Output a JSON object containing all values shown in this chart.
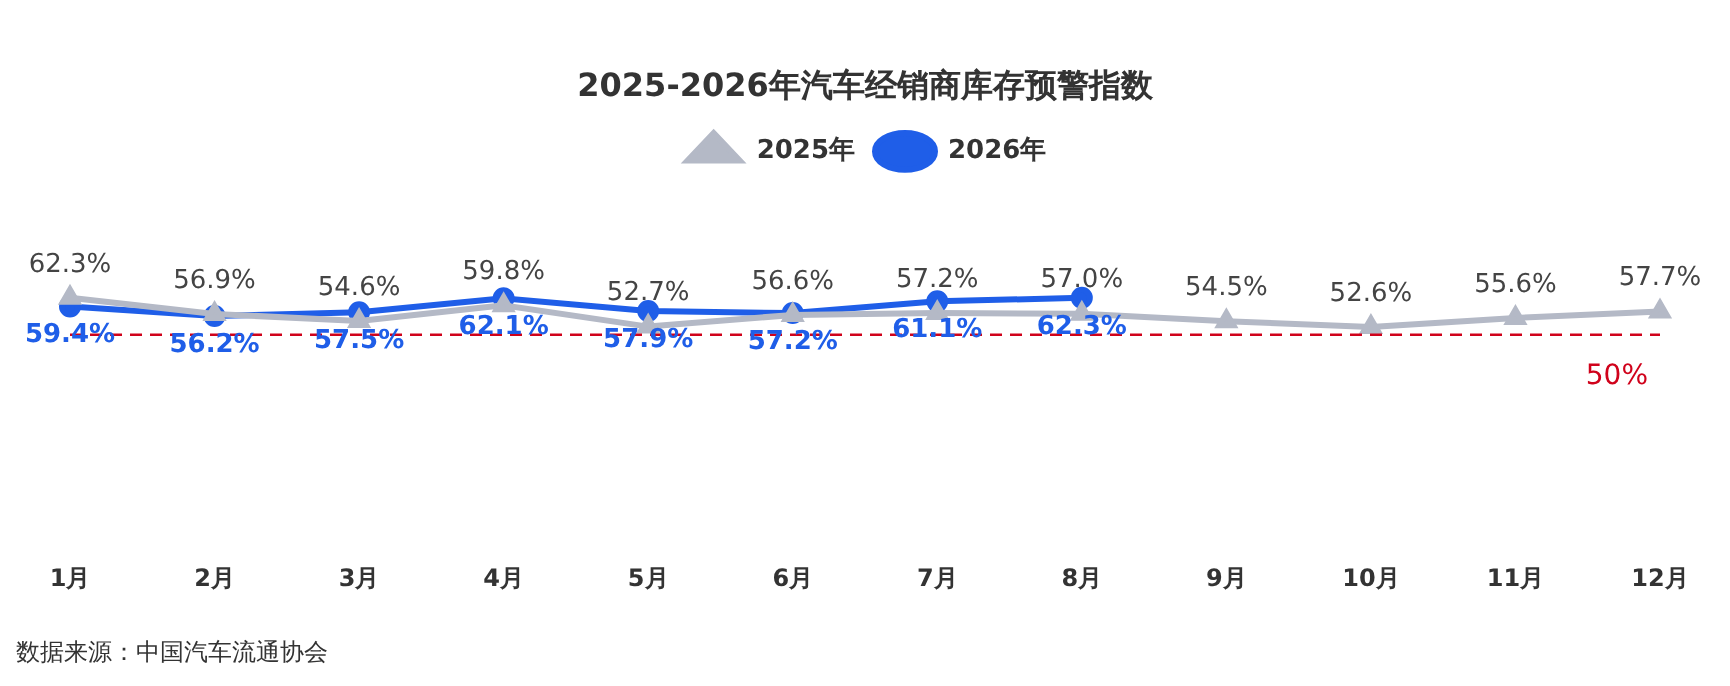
{
  "chart_data": {
    "type": "line",
    "title": "2025-2026年汽车经销商库存预警指数",
    "categories": [
      "1月",
      "2月",
      "3月",
      "4月",
      "5月",
      "6月",
      "7月",
      "8月",
      "9月",
      "10月",
      "11月",
      "12月"
    ],
    "series": [
      {
        "name": "2025年",
        "color": "#b4b9c6",
        "marker": "triangle",
        "values": [
          62.3,
          56.9,
          54.6,
          59.8,
          52.7,
          56.6,
          57.2,
          57.0,
          54.5,
          52.6,
          55.6,
          57.7
        ],
        "value_labels": [
          "62.3%",
          "56.9%",
          "54.6%",
          "59.8%",
          "52.7%",
          "56.6%",
          "57.2%",
          "57.0%",
          "54.5%",
          "52.6%",
          "55.6%",
          "57.7%"
        ]
      },
      {
        "name": "2026年",
        "color": "#1f5ee8",
        "marker": "circle",
        "values": [
          59.4,
          56.2,
          57.5,
          62.1,
          57.9,
          57.2,
          61.1,
          62.3,
          null,
          null,
          null,
          null
        ],
        "value_labels": [
          "59.4%",
          "56.2%",
          "57.5%",
          "62.1%",
          "57.9%",
          "57.2%",
          "61.1%",
          "62.3%",
          null,
          null,
          null,
          null
        ]
      }
    ],
    "tick_labels": "x",
    "grid": false,
    "legend": "top",
    "line_style": "solid",
    "ref_lines": [
      {
        "axis": "y",
        "value": 50,
        "label": "50%",
        "color": "#d0021b",
        "line_style": "dashed"
      }
    ],
    "annotations": [
      "数据来源：中国汽车流通协会"
    ]
  }
}
